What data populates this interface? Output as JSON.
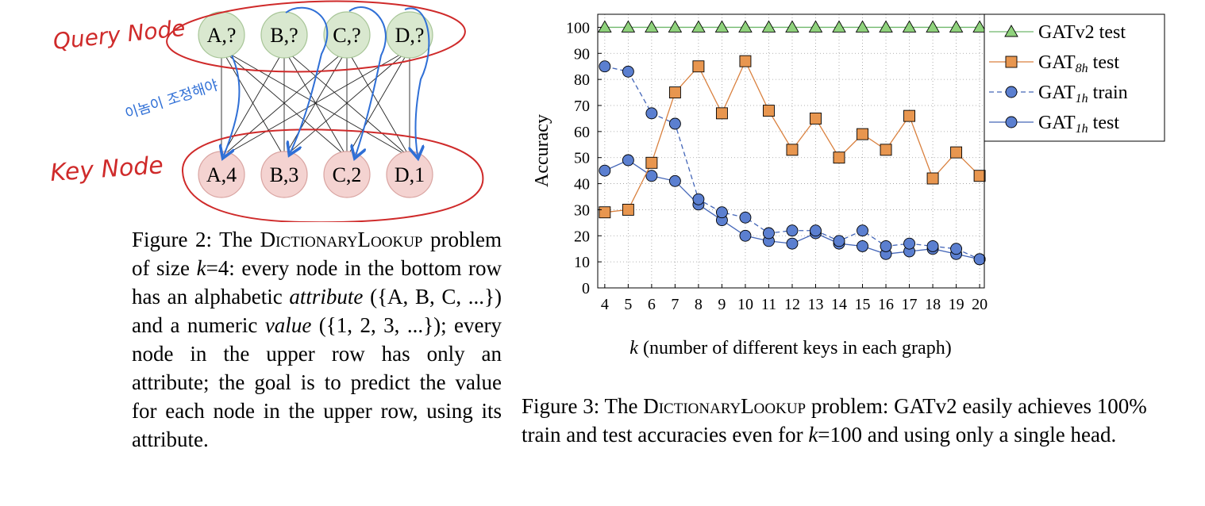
{
  "figure2": {
    "annotations": {
      "query": "Query Node",
      "key": "Key Node",
      "korean": "이놈이 조정해야"
    },
    "query_nodes": [
      "A,?",
      "B,?",
      "C,?",
      "D,?"
    ],
    "key_nodes": [
      "A,4",
      "B,3",
      "C,2",
      "D,1"
    ],
    "caption": {
      "prefix": "Figure 2:  The ",
      "name": "DictionaryLookup",
      "t1": " problem of size ",
      "k": "k",
      "t2": "=4: every node in the bottom row has an alphabetic ",
      "attr": "attribute",
      "t3": " ({A, B, C, ...}) and a numeric ",
      "value": "value",
      "t4": " ({1, 2, 3, ...}); every node in the upper row has only an attribute; the goal is to predict the value for each node in the upper row, using its attribute."
    }
  },
  "chart_data": {
    "type": "line",
    "ylabel": "Accuracy",
    "xlabel": "k (number of different keys in each graph)",
    "x": [
      4,
      5,
      6,
      7,
      8,
      9,
      10,
      11,
      12,
      13,
      14,
      15,
      16,
      17,
      18,
      19,
      20
    ],
    "yticks": [
      0,
      10,
      20,
      30,
      40,
      50,
      60,
      70,
      80,
      90,
      100
    ],
    "ylim": [
      0,
      105
    ],
    "xlim": [
      3.7,
      20.2
    ],
    "grid": true,
    "legend_position": "top-right",
    "series": [
      {
        "name": "GATv2 test",
        "color": "#6fb86a",
        "fill": "#8fd27c",
        "marker": "triangle",
        "dash": "solid",
        "values": [
          100,
          100,
          100,
          100,
          100,
          100,
          100,
          100,
          100,
          100,
          100,
          100,
          100,
          100,
          100,
          100,
          100
        ]
      },
      {
        "name": "GAT8h test",
        "color": "#d9803e",
        "fill": "#e8964f",
        "marker": "square",
        "dash": "solid",
        "values": [
          29,
          30,
          48,
          75,
          85,
          67,
          87,
          68,
          53,
          65,
          50,
          59,
          53,
          66,
          42,
          52,
          43
        ]
      },
      {
        "name": "GAT1h train",
        "color": "#4466b8",
        "fill": "#5b7fd0",
        "marker": "circle",
        "dash": "dashed",
        "values": [
          85,
          83,
          67,
          63,
          34,
          29,
          27,
          21,
          22,
          22,
          18,
          22,
          16,
          17,
          16,
          15,
          11
        ]
      },
      {
        "name": "GAT1h test",
        "color": "#4466b8",
        "fill": "#5b7fd0",
        "marker": "circle",
        "dash": "solid",
        "values": [
          45,
          49,
          43,
          41,
          32,
          26,
          20,
          18,
          17,
          21,
          17,
          16,
          13,
          14,
          15,
          13,
          11
        ]
      }
    ],
    "legend": [
      {
        "base": "GAT",
        "sub": "",
        "rest": "v2 test"
      },
      {
        "base": "GAT",
        "sub": "8h",
        "rest": " test"
      },
      {
        "base": "GAT",
        "sub": "1h",
        "rest": " train"
      },
      {
        "base": "GAT",
        "sub": "1h",
        "rest": " test"
      }
    ]
  },
  "figure3": {
    "caption": {
      "prefix": "Figure 3: The ",
      "name": "DictionaryLookup",
      "t1": " problem: GATv2 easily achieves 100% train and test accuracies even for ",
      "k": "k",
      "t2": "=100 and using only a single head."
    }
  }
}
